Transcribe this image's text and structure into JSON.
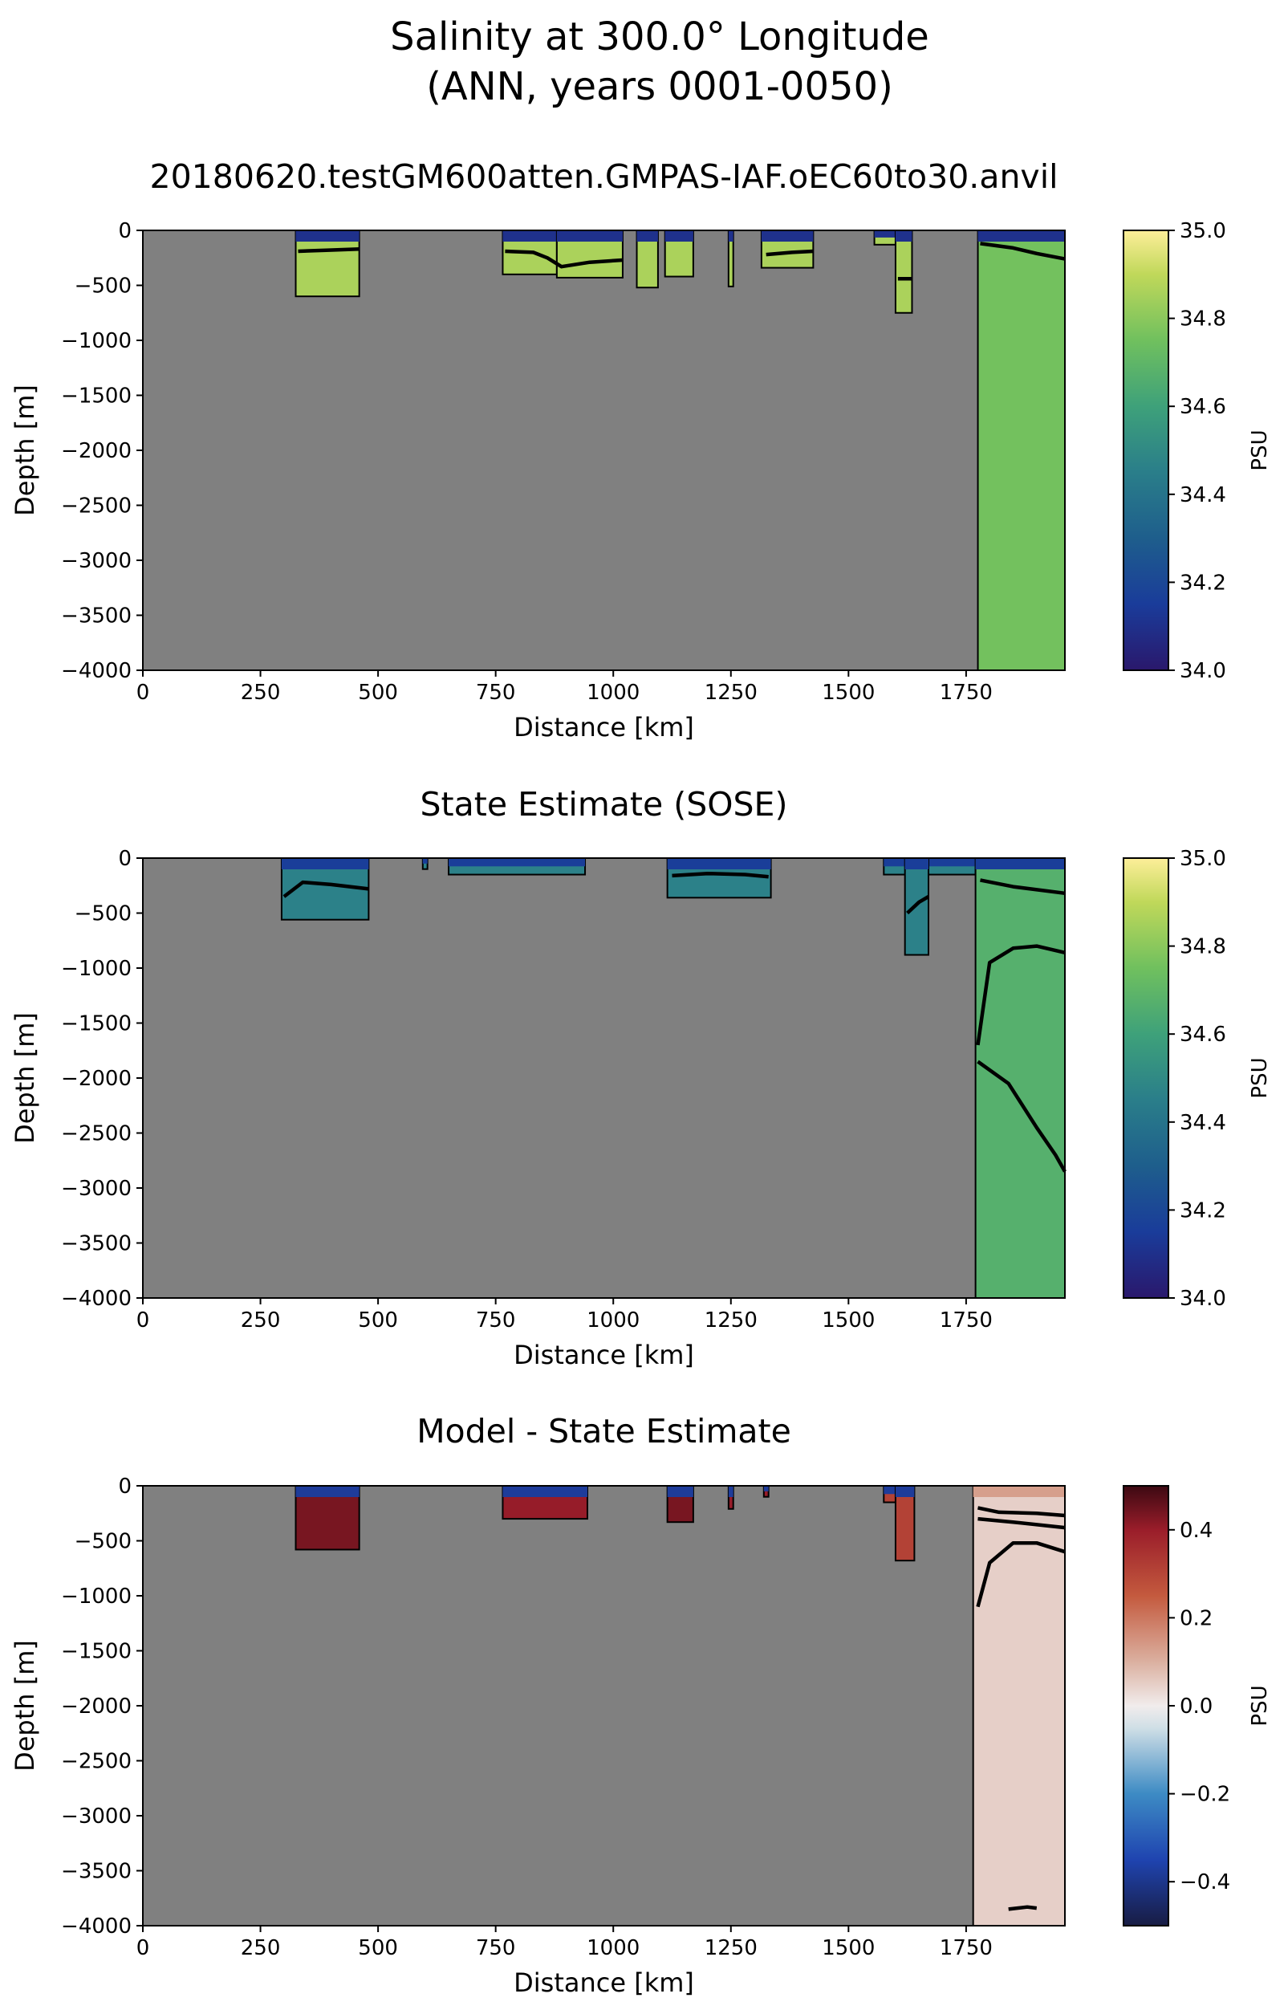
{
  "figure": {
    "suptitle_line1": "Salinity at 300.0° Longitude",
    "suptitle_line2": "(ANN, years 0001-0050)"
  },
  "chart_data": [
    {
      "type": "heatmap",
      "title": "20180620.testGM600atten.GMPAS-IAF.oEC60to30.anvil",
      "xlabel": "Distance [km]",
      "ylabel": "Depth [m]",
      "xlim": [
        0,
        1960
      ],
      "ylim": [
        -4000,
        0
      ],
      "xticks": [
        0,
        250,
        500,
        750,
        1000,
        1250,
        1500,
        1750
      ],
      "yticks": [
        0,
        -500,
        -1000,
        -1500,
        -2000,
        -2500,
        -3000,
        -3500,
        -4000
      ],
      "colorbar": {
        "label": "PSU",
        "min": 34.0,
        "max": 35.0,
        "ticks": [
          "34.0",
          "34.2",
          "34.4",
          "34.6",
          "34.8",
          "35.0"
        ],
        "colormap": "haline"
      },
      "land_color": "#808080",
      "water_columns": [
        {
          "x0": 325,
          "x1": 460,
          "bottom": -600,
          "surface_value": 34.1,
          "value": 34.82
        },
        {
          "x0": 765,
          "x1": 880,
          "bottom": -400,
          "surface_value": 34.1,
          "value": 34.82
        },
        {
          "x0": 880,
          "x1": 1020,
          "bottom": -430,
          "surface_value": 34.1,
          "value": 34.82
        },
        {
          "x0": 1050,
          "x1": 1095,
          "bottom": -520,
          "surface_value": 34.1,
          "value": 34.82
        },
        {
          "x0": 1110,
          "x1": 1170,
          "bottom": -420,
          "surface_value": 34.1,
          "value": 34.82
        },
        {
          "x0": 1245,
          "x1": 1255,
          "bottom": -510,
          "surface_value": 34.1,
          "value": 34.82
        },
        {
          "x0": 1315,
          "x1": 1425,
          "bottom": -340,
          "surface_value": 34.1,
          "value": 34.82
        },
        {
          "x0": 1555,
          "x1": 1600,
          "bottom": -130,
          "surface_value": 34.1,
          "value": 34.82
        },
        {
          "x0": 1600,
          "x1": 1635,
          "bottom": -750,
          "surface_value": 34.1,
          "value": 34.82
        },
        {
          "x0": 1775,
          "x1": 1960,
          "bottom": -4000,
          "surface_value": 34.1,
          "value": 34.72
        }
      ],
      "contours": [
        {
          "x": [
            330,
            390,
            460
          ],
          "y": [
            -190,
            -180,
            -170
          ]
        },
        {
          "x": [
            770,
            830,
            860,
            890,
            950,
            1020
          ],
          "y": [
            -190,
            -200,
            -250,
            -330,
            -290,
            -270
          ]
        },
        {
          "x": [
            1325,
            1380,
            1425
          ],
          "y": [
            -220,
            -200,
            -190
          ]
        },
        {
          "x": [
            1605,
            1635
          ],
          "y": [
            -440,
            -440
          ]
        },
        {
          "x": [
            1780,
            1850,
            1900,
            1960
          ],
          "y": [
            -120,
            -160,
            -210,
            -260
          ]
        }
      ]
    },
    {
      "type": "heatmap",
      "title": "State Estimate (SOSE)",
      "xlabel": "Distance [km]",
      "ylabel": "Depth [m]",
      "xlim": [
        0,
        1960
      ],
      "ylim": [
        -4000,
        0
      ],
      "xticks": [
        0,
        250,
        500,
        750,
        1000,
        1250,
        1500,
        1750
      ],
      "yticks": [
        0,
        -500,
        -1000,
        -1500,
        -2000,
        -2500,
        -3000,
        -3500,
        -4000
      ],
      "colorbar": {
        "label": "PSU",
        "min": 34.0,
        "max": 35.0,
        "ticks": [
          "34.0",
          "34.2",
          "34.4",
          "34.6",
          "34.8",
          "35.0"
        ],
        "colormap": "haline"
      },
      "land_color": "#808080",
      "water_columns": [
        {
          "x0": 295,
          "x1": 480,
          "bottom": -560,
          "surface_value": 34.15,
          "value": 34.44
        },
        {
          "x0": 595,
          "x1": 605,
          "bottom": -100,
          "surface_value": 34.15,
          "value": 34.44
        },
        {
          "x0": 650,
          "x1": 940,
          "bottom": -150,
          "surface_value": 34.15,
          "value": 34.44
        },
        {
          "x0": 1115,
          "x1": 1335,
          "bottom": -360,
          "surface_value": 34.15,
          "value": 34.44
        },
        {
          "x0": 1575,
          "x1": 1770,
          "bottom": -150,
          "surface_value": 34.15,
          "value": 34.44
        },
        {
          "x0": 1620,
          "x1": 1670,
          "bottom": -880,
          "surface_value": 34.15,
          "value": 34.44
        },
        {
          "x0": 1770,
          "x1": 1960,
          "bottom": -4000,
          "surface_value": 34.15,
          "value": 34.64
        }
      ],
      "contours": [
        {
          "x": [
            300,
            340,
            400,
            480
          ],
          "y": [
            -350,
            -220,
            -240,
            -280
          ]
        },
        {
          "x": [
            1125,
            1200,
            1280,
            1330
          ],
          "y": [
            -160,
            -140,
            -150,
            -170
          ]
        },
        {
          "x": [
            1625,
            1650,
            1670
          ],
          "y": [
            -500,
            -400,
            -350
          ]
        },
        {
          "x": [
            1775,
            1800,
            1850,
            1900,
            1960
          ],
          "y": [
            -1700,
            -950,
            -820,
            -800,
            -860
          ]
        },
        {
          "x": [
            1775,
            1840,
            1900,
            1940,
            1960
          ],
          "y": [
            -1850,
            -2050,
            -2450,
            -2700,
            -2850
          ]
        },
        {
          "x": [
            1780,
            1850,
            1960
          ],
          "y": [
            -200,
            -260,
            -320
          ]
        }
      ]
    },
    {
      "type": "heatmap",
      "title": "Model - State Estimate",
      "xlabel": "Distance [km]",
      "ylabel": "Depth [m]",
      "xlim": [
        0,
        1960
      ],
      "ylim": [
        -4000,
        0
      ],
      "xticks": [
        0,
        250,
        500,
        750,
        1000,
        1250,
        1500,
        1750
      ],
      "yticks": [
        0,
        -500,
        -1000,
        -1500,
        -2000,
        -2500,
        -3000,
        -3500,
        -4000
      ],
      "colorbar": {
        "label": "PSU",
        "min": -0.5,
        "max": 0.5,
        "ticks": [
          "−0.4",
          "−0.2",
          "0.0",
          "0.2",
          "0.4"
        ],
        "colormap": "balance"
      },
      "land_color": "#808080",
      "water_columns": [
        {
          "x0": 325,
          "x1": 460,
          "bottom": -580,
          "surface_value": -0.4,
          "value": 0.42
        },
        {
          "x0": 765,
          "x1": 945,
          "bottom": -300,
          "surface_value": -0.4,
          "value": 0.38
        },
        {
          "x0": 1115,
          "x1": 1170,
          "bottom": -330,
          "surface_value": -0.4,
          "value": 0.42
        },
        {
          "x0": 1245,
          "x1": 1255,
          "bottom": -210,
          "surface_value": -0.4,
          "value": 0.38
        },
        {
          "x0": 1320,
          "x1": 1330,
          "bottom": -100,
          "surface_value": -0.4,
          "value": 0.38
        },
        {
          "x0": 1575,
          "x1": 1600,
          "bottom": -150,
          "surface_value": -0.4,
          "value": 0.3
        },
        {
          "x0": 1600,
          "x1": 1640,
          "bottom": -680,
          "surface_value": -0.4,
          "value": 0.3
        },
        {
          "x0": 1765,
          "x1": 1960,
          "bottom": -4000,
          "surface_value": 0.15,
          "value": 0.06
        }
      ],
      "contours": [
        {
          "x": [
            1775,
            1820,
            1900,
            1960
          ],
          "y": [
            -200,
            -240,
            -250,
            -270
          ]
        },
        {
          "x": [
            1775,
            1850,
            1960
          ],
          "y": [
            -300,
            -330,
            -380
          ]
        },
        {
          "x": [
            1775,
            1800,
            1850,
            1900,
            1960
          ],
          "y": [
            -1100,
            -700,
            -520,
            -520,
            -600
          ]
        },
        {
          "x": [
            1840,
            1880,
            1900
          ],
          "y": [
            -3850,
            -3830,
            -3840
          ]
        }
      ]
    }
  ]
}
